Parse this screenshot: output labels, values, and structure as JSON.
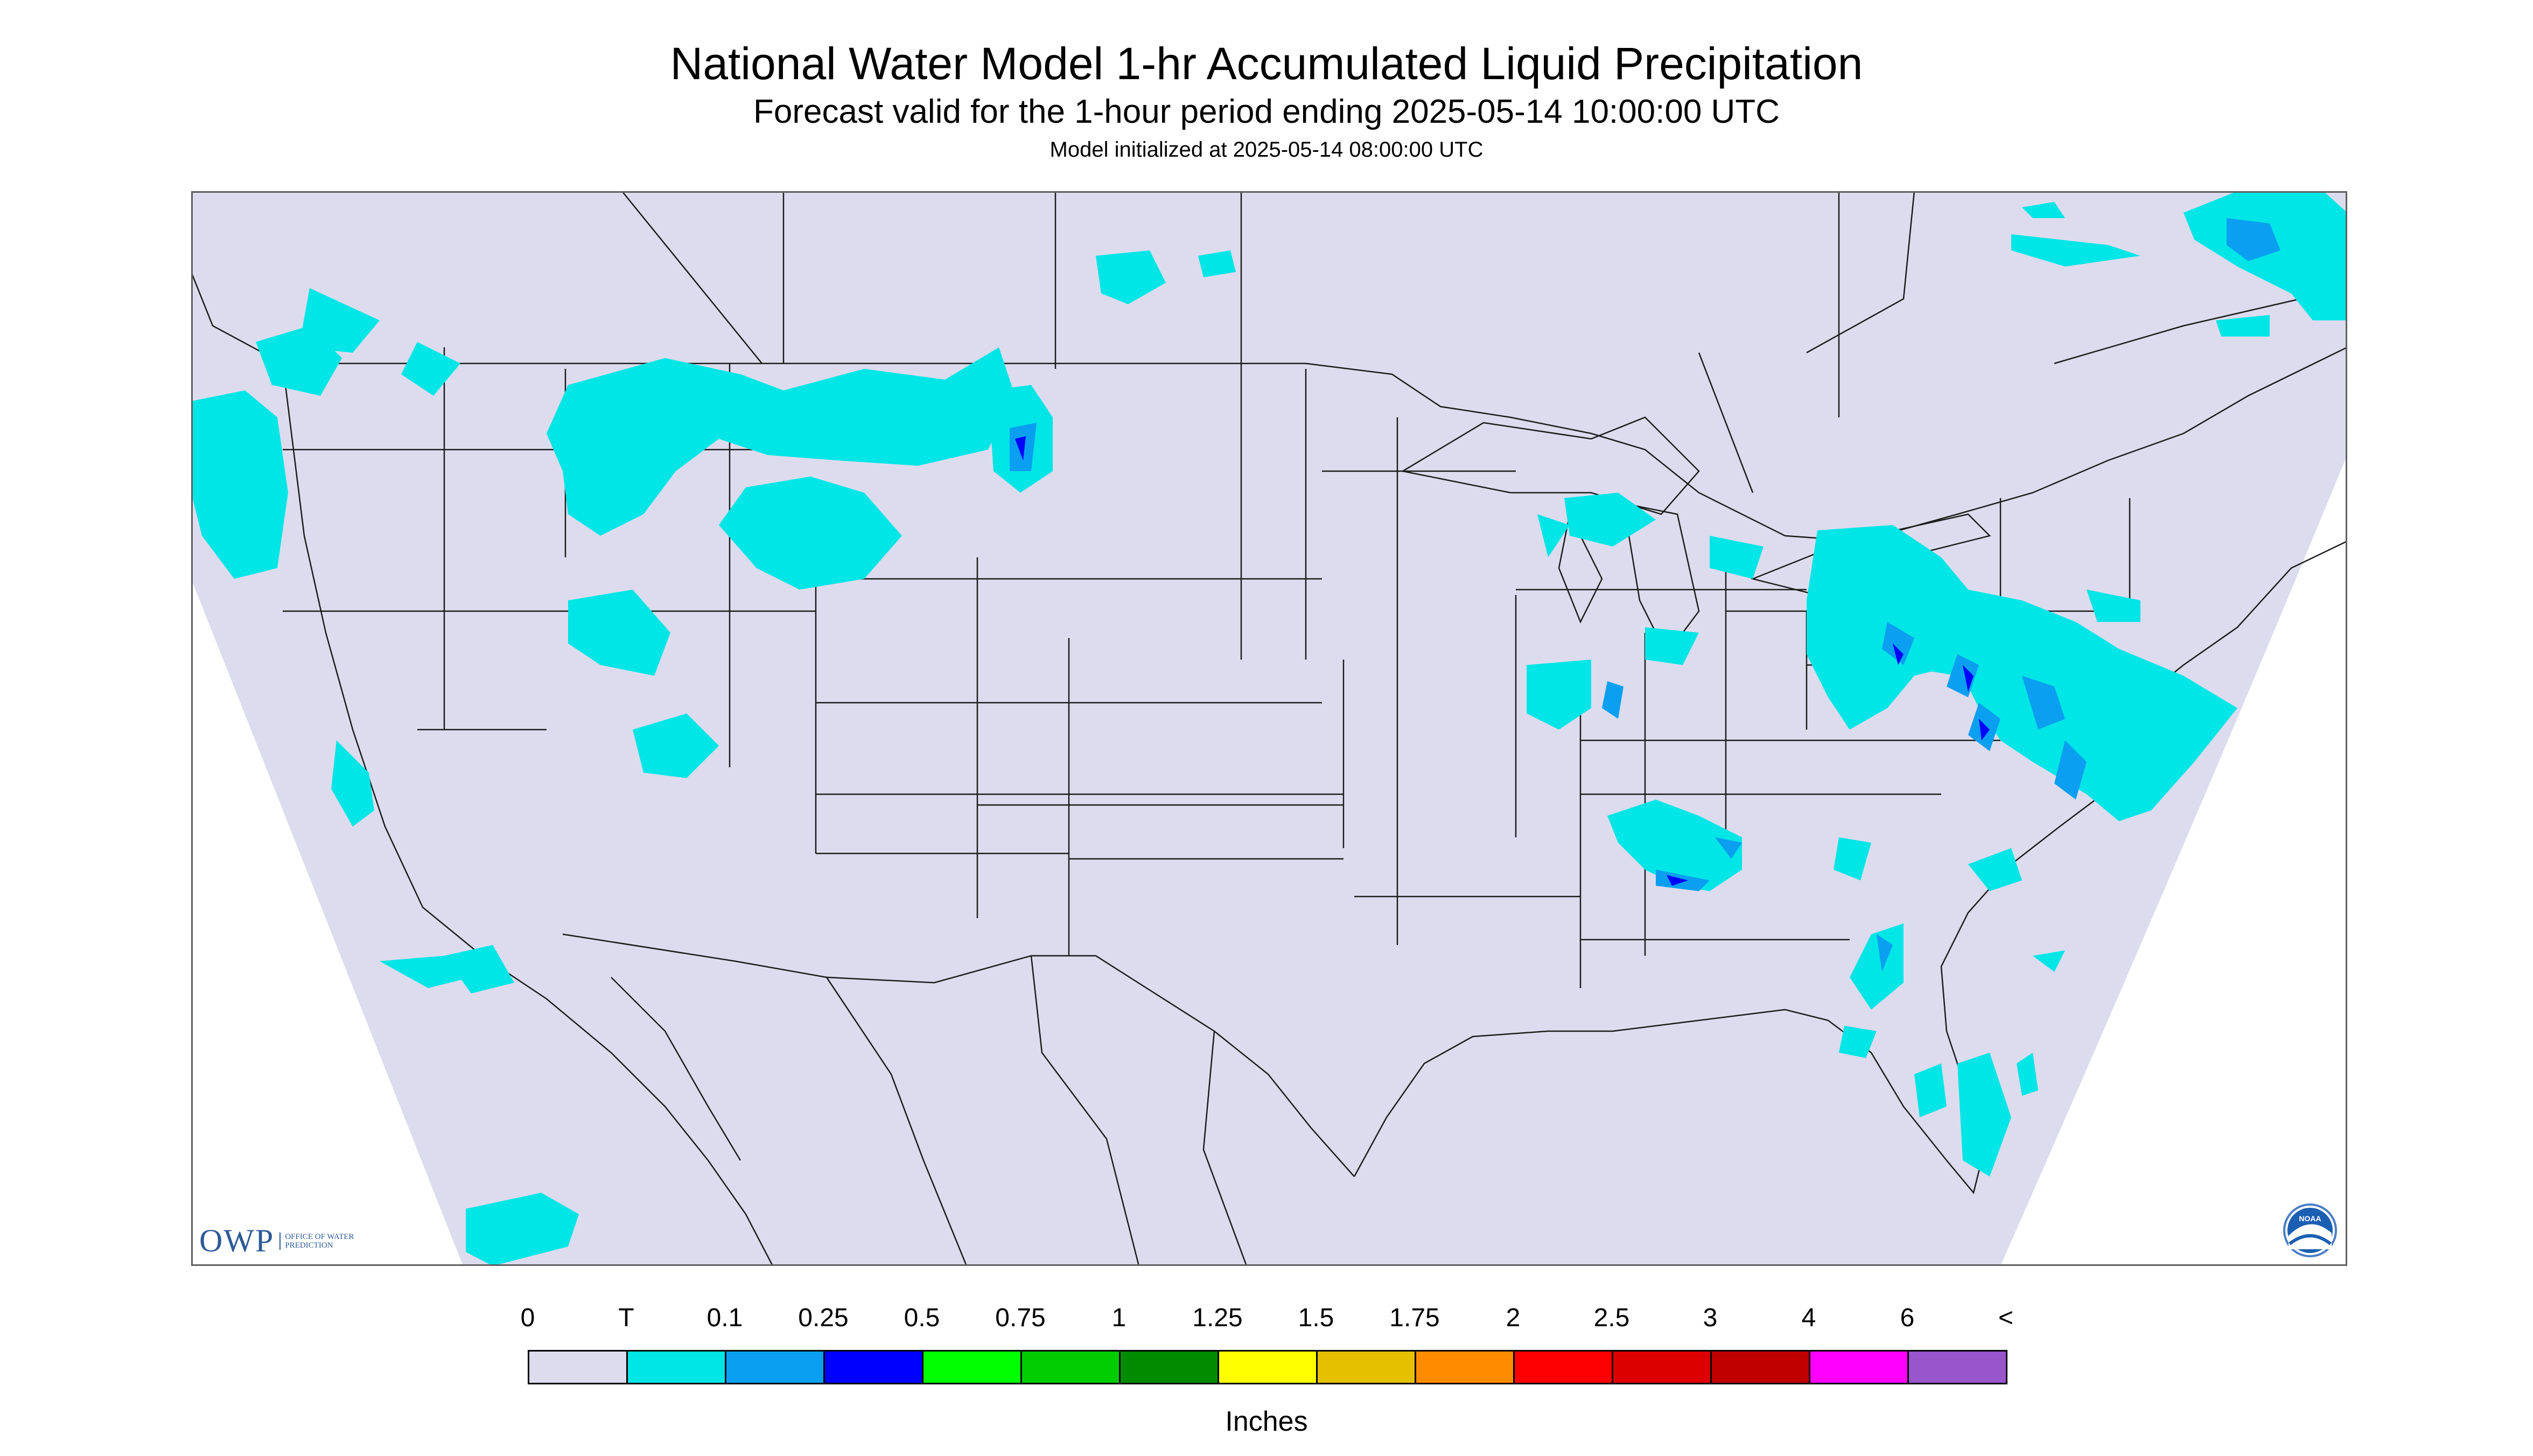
{
  "title": "National Water Model 1-hr Accumulated Liquid Precipitation",
  "subtitle": "Forecast valid for the 1-hour period ending 2025-05-14 10:00:00 UTC",
  "init_line": "Model initialized at 2025-05-14 08:00:00 UTC",
  "legend": {
    "ticks": [
      "0",
      "T",
      "0.1",
      "0.25",
      "0.5",
      "0.75",
      "1",
      "1.25",
      "1.5",
      "1.75",
      "2",
      "2.5",
      "3",
      "4",
      "6",
      "<"
    ],
    "colors": [
      "#dcdcee",
      "#00e5e5",
      "#0a9ff0",
      "#0000ff",
      "#00ff00",
      "#00cc00",
      "#008b00",
      "#ffff00",
      "#e5c000",
      "#ff8c00",
      "#ff0000",
      "#dd0000",
      "#c00000",
      "#ff00ff",
      "#9955cc"
    ],
    "units": "Inches"
  },
  "logos": {
    "owp_text": "OWP",
    "owp_sub": "OFFICE OF WATER PREDICTION",
    "noaa_text": "NOAA"
  },
  "map": {
    "background_color": "#dcdcee",
    "border_color": "#202020",
    "precip_trace_color": "#00e5e5",
    "precip_light_color": "#0a9ff0",
    "precip_heavy_color": "#0000ff"
  }
}
